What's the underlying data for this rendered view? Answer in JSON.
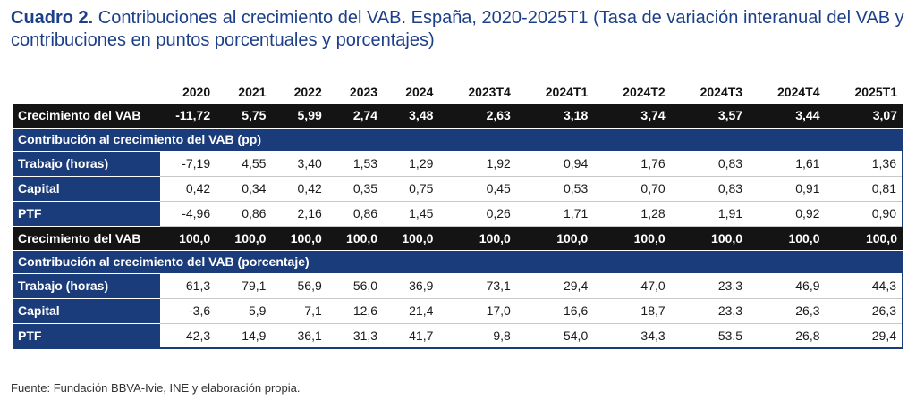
{
  "title": {
    "bold": "Cuadro 2.",
    "text": " Contribuciones al crecimiento del VAB. España, 2020-2025T1 (Tasa de variación interanual del VAB y contribuciones en puntos porcentuales y porcentajes)"
  },
  "columns": [
    "2020",
    "2021",
    "2022",
    "2023",
    "2024",
    "2023T4",
    "2024T1",
    "2024T2",
    "2024T3",
    "2024T4",
    "2025T1"
  ],
  "growth_row": {
    "label": "Crecimiento del VAB",
    "values": [
      "-11,72",
      "5,75",
      "5,99",
      "2,74",
      "3,48",
      "2,63",
      "3,18",
      "3,74",
      "3,57",
      "3,44",
      "3,07"
    ]
  },
  "section_pp": {
    "label": "Contribución al crecimiento del VAB (pp)",
    "rows": [
      {
        "label": "Trabajo (horas)",
        "values": [
          "-7,19",
          "4,55",
          "3,40",
          "1,53",
          "1,29",
          "1,92",
          "0,94",
          "1,76",
          "0,83",
          "1,61",
          "1,36"
        ]
      },
      {
        "label": "Capital",
        "values": [
          "0,42",
          "0,34",
          "0,42",
          "0,35",
          "0,75",
          "0,45",
          "0,53",
          "0,70",
          "0,83",
          "0,91",
          "0,81"
        ]
      },
      {
        "label": "PTF",
        "values": [
          "-4,96",
          "0,86",
          "2,16",
          "0,86",
          "1,45",
          "0,26",
          "1,71",
          "1,28",
          "1,91",
          "0,92",
          "0,90"
        ]
      }
    ]
  },
  "growth_row_pct": {
    "label": "Crecimiento del VAB",
    "values": [
      "100,0",
      "100,0",
      "100,0",
      "100,0",
      "100,0",
      "100,0",
      "100,0",
      "100,0",
      "100,0",
      "100,0",
      "100,0"
    ]
  },
  "section_pct": {
    "label": "Contribución al crecimiento del VAB (porcentaje)",
    "rows": [
      {
        "label": "Trabajo (horas)",
        "values": [
          "61,3",
          "79,1",
          "56,9",
          "56,0",
          "36,9",
          "73,1",
          "29,4",
          "47,0",
          "23,3",
          "46,9",
          "44,3"
        ]
      },
      {
        "label": "Capital",
        "values": [
          "-3,6",
          "5,9",
          "7,1",
          "12,6",
          "21,4",
          "17,0",
          "16,6",
          "18,7",
          "23,3",
          "26,3",
          "26,3"
        ]
      },
      {
        "label": "PTF",
        "values": [
          "42,3",
          "14,9",
          "36,1",
          "31,3",
          "41,7",
          "9,8",
          "54,0",
          "34,3",
          "53,5",
          "26,8",
          "29,4"
        ]
      }
    ]
  },
  "source": "Fuente: Fundación BBVA-Ivie, INE y elaboración propia."
}
